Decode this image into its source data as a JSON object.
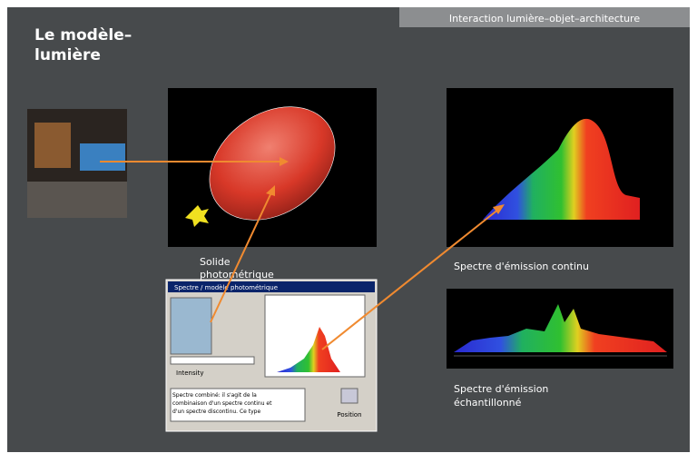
{
  "header": {
    "title": "Interaction lumière–objet–architecture"
  },
  "slide": {
    "title_lines": [
      "Le modèle–",
      "lumière"
    ]
  },
  "panels": {
    "solid": {
      "caption_lines": [
        "Solide",
        "photométrique"
      ]
    },
    "continuous": {
      "caption": "Spectre d'émission continu"
    },
    "sampled": {
      "caption_lines": [
        "Spectre d'émission",
        "échantillonné"
      ]
    }
  },
  "dialog": {
    "title": "Spectre / modèle photométrique",
    "field": "Intensity",
    "text_lines": [
      "Spectre combiné: il s'agit de la",
      "combinaison d'un spectre continu et",
      "d'un spectre discontinu. Ce type"
    ],
    "button": "Position"
  }
}
